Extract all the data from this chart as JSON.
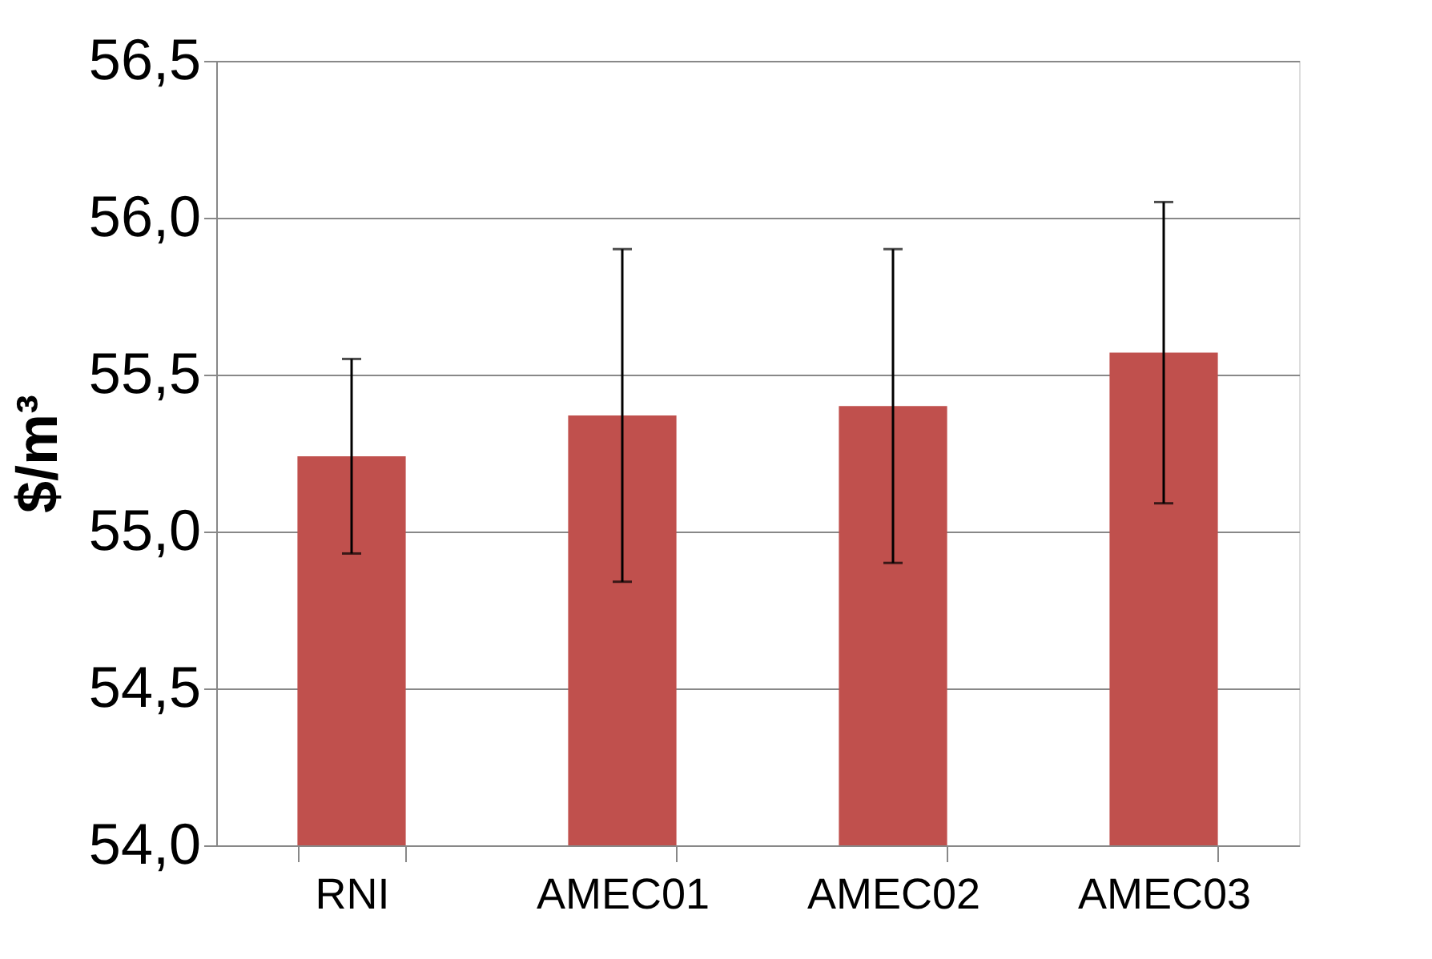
{
  "chart_data": {
    "type": "bar",
    "ylabel": "$/m³",
    "categories": [
      "RNI",
      "AMEC01",
      "AMEC02",
      "AMEC03"
    ],
    "values": [
      55.24,
      55.37,
      55.4,
      55.57
    ],
    "errors": [
      0.31,
      0.53,
      0.5,
      0.48
    ],
    "color": "#c0504d",
    "ylim": [
      54.0,
      56.5
    ],
    "yticks": [
      {
        "value": 54.0,
        "label": "54,0"
      },
      {
        "value": 54.5,
        "label": "54,5"
      },
      {
        "value": 55.0,
        "label": "55,0"
      },
      {
        "value": 55.5,
        "label": "55,5"
      },
      {
        "value": 56.0,
        "label": "56,0"
      },
      {
        "value": 56.5,
        "label": "56,5"
      }
    ],
    "grid": "y"
  }
}
